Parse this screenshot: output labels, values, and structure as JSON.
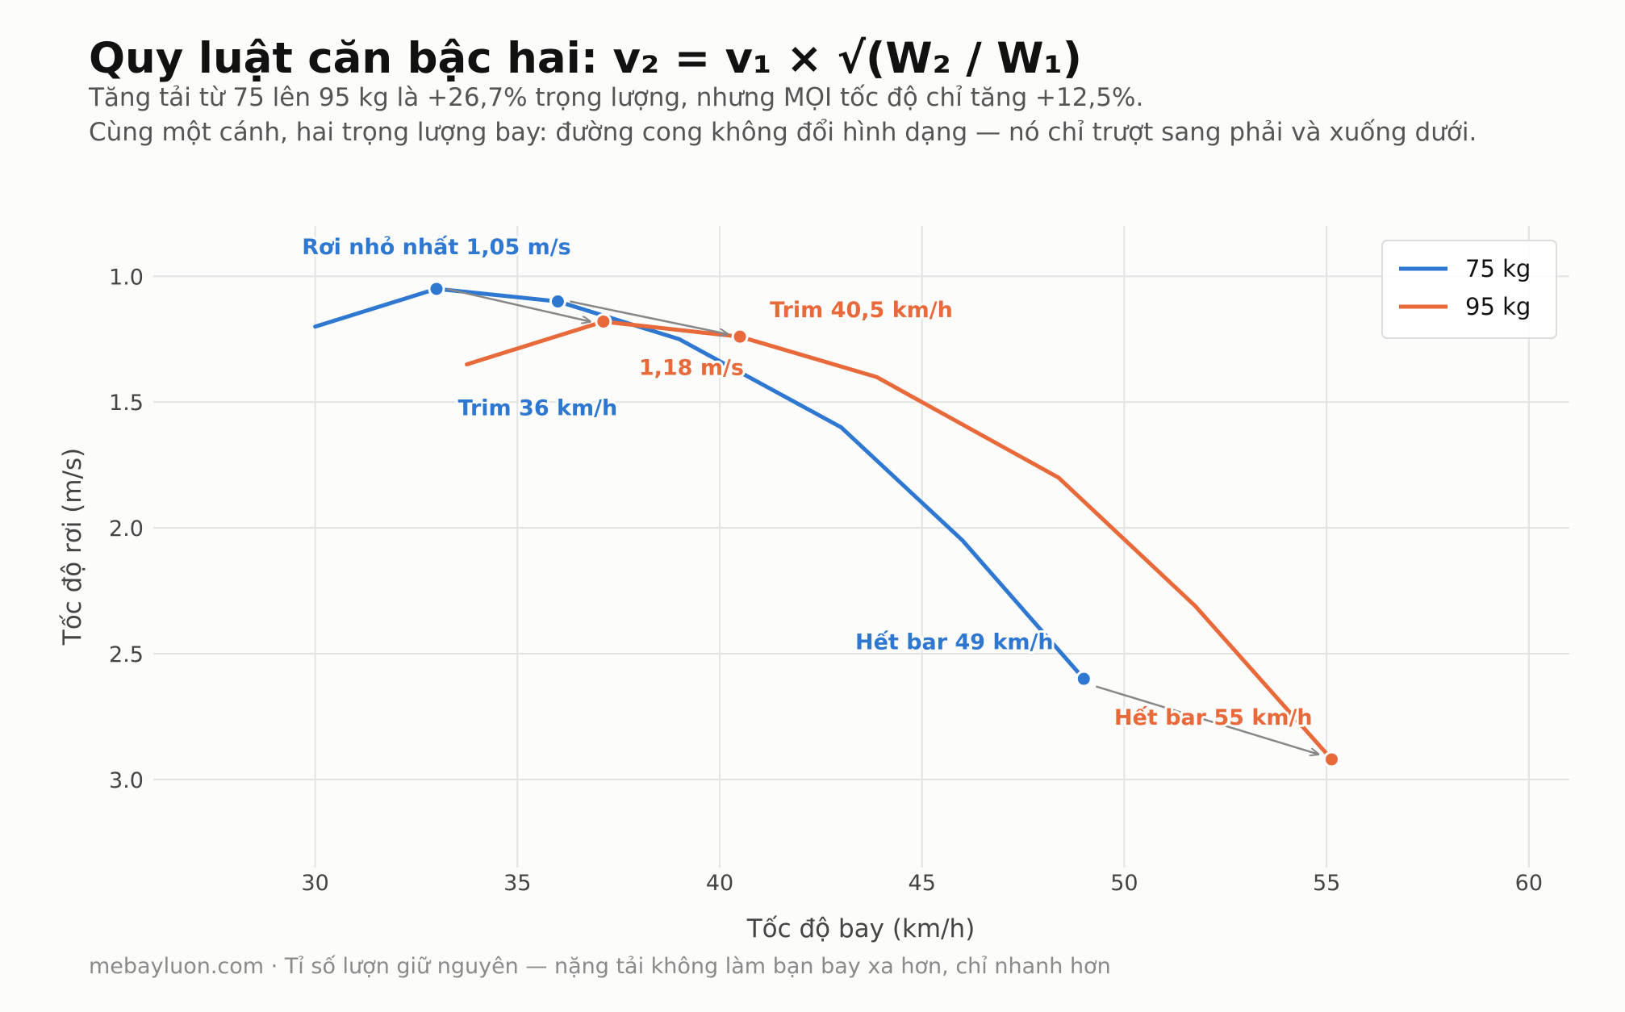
{
  "title": "Quy luật căn bậc hai:  v₂ = v₁ × √(W₂ / W₁)",
  "subtitle_lines": [
    "Tăng tải từ 75 lên 95 kg là +26,7% trọng lượng, nhưng MỌI tốc độ chỉ tăng +12,5%.",
    "Cùng một cánh, hai trọng lượng bay: đường cong không đổi hình dạng — nó chỉ trượt sang phải và xuống dưới."
  ],
  "footer": "mebayluon.com · Tỉ số lượn giữ nguyên — nặng tải không làm bạn bay xa hơn, chỉ nhanh hơn",
  "colors": {
    "blue": "#2e78d2",
    "orange": "#e8693a",
    "arrow": "#888888"
  },
  "chart_data": {
    "type": "line",
    "xlabel": "Tốc độ bay  (km/h)",
    "ylabel": "Tốc độ rơi  (m/s)",
    "xlim": [
      26,
      61
    ],
    "ylim": [
      0.8,
      3.35
    ],
    "y_inverted": true,
    "grid": true,
    "legend_position": "top-right",
    "xticks": [
      30,
      35,
      40,
      45,
      50,
      55,
      60
    ],
    "yticks": [
      1.0,
      1.5,
      2.0,
      2.5,
      3.0
    ],
    "xtick_labels": [
      "30",
      "35",
      "40",
      "45",
      "50",
      "55",
      "60"
    ],
    "ytick_labels": [
      "1.0",
      "1.5",
      "2.0",
      "2.5",
      "3.0"
    ],
    "series": [
      {
        "name": "75 kg",
        "color": "#2e78d2",
        "x": [
          30,
          33,
          36,
          39,
          43,
          46,
          49
        ],
        "y": [
          1.2,
          1.05,
          1.1,
          1.25,
          1.6,
          2.05,
          2.6
        ],
        "highlights": [
          {
            "x": 33,
            "y": 1.05
          },
          {
            "x": 36,
            "y": 1.1
          },
          {
            "x": 49,
            "y": 2.6
          }
        ]
      },
      {
        "name": "95 kg",
        "color": "#e8693a",
        "x": [
          33.75,
          37.125,
          40.5,
          43.875,
          48.375,
          51.75,
          55.125
        ],
        "y": [
          1.35,
          1.18,
          1.24,
          1.4,
          1.8,
          2.31,
          2.92
        ],
        "highlights": [
          {
            "x": 37.125,
            "y": 1.18
          },
          {
            "x": 40.5,
            "y": 1.24
          },
          {
            "x": 55.125,
            "y": 2.92
          }
        ]
      }
    ],
    "arrows": [
      {
        "from": [
          33.25,
          1.05
        ],
        "to": [
          36.8,
          1.18
        ]
      },
      {
        "from": [
          36.3,
          1.1
        ],
        "to": [
          40.2,
          1.23
        ]
      },
      {
        "from": [
          49.3,
          2.63
        ],
        "to": [
          54.8,
          2.9
        ]
      }
    ],
    "annotations": [
      {
        "text": "Rơi nhỏ nhất 1,05 m/s",
        "x": 33,
        "y": 0.88,
        "color": "blue"
      },
      {
        "text": "Trim 36 km/h",
        "x": 35.5,
        "y": 1.52,
        "color": "blue"
      },
      {
        "text": "Hết bar 49 km/h",
        "x": 45.8,
        "y": 2.45,
        "color": "blue"
      },
      {
        "text": "Trim 40,5 km/h",
        "x": 43.5,
        "y": 1.13,
        "color": "orange"
      },
      {
        "text": "1,18 m/s",
        "x": 39.3,
        "y": 1.36,
        "color": "orange"
      },
      {
        "text": "Hết bar 55 km/h",
        "x": 52.2,
        "y": 2.75,
        "color": "orange"
      }
    ]
  }
}
